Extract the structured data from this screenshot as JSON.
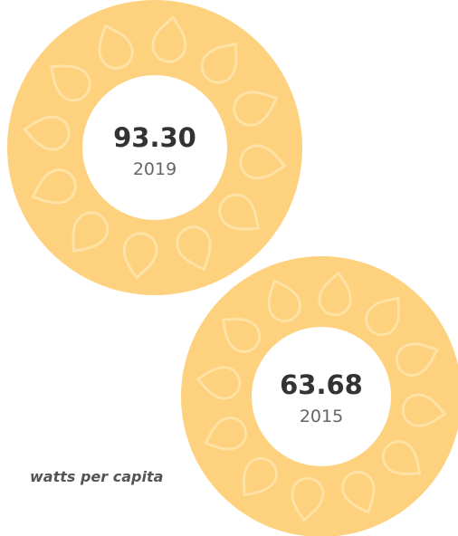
{
  "items": [
    {
      "value": "93.30",
      "year": "2019"
    },
    {
      "value": "63.68",
      "year": "2015"
    }
  ],
  "unit_label": "watts per capita"
}
